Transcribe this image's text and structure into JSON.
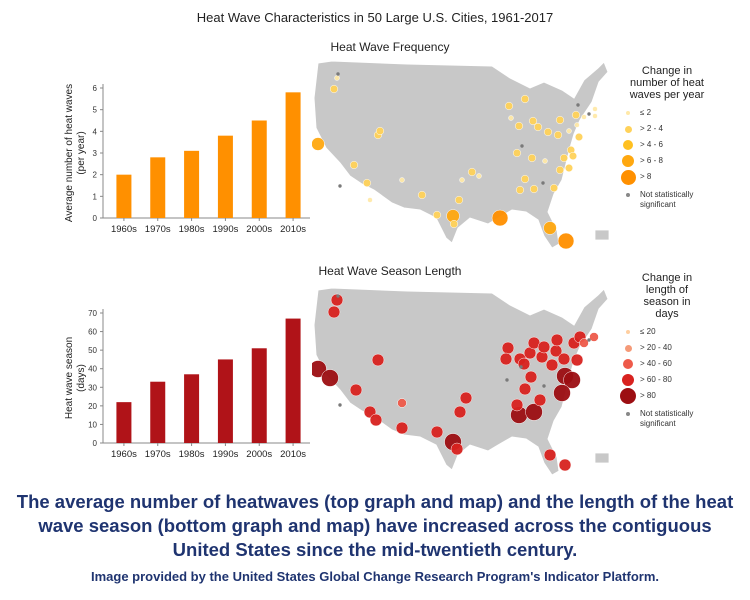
{
  "title": "Heat Wave Characteristics in 50 Large U.S. Cities, 1961-2017",
  "colors": {
    "frequency": "#ff9000",
    "season": "#b01318",
    "map_land": "#c8c8c8"
  },
  "chart_data": [
    {
      "type": "bar",
      "title": "Heat Wave Frequency",
      "categories": [
        "1960s",
        "1970s",
        "1980s",
        "1990s",
        "2000s",
        "2010s"
      ],
      "values": [
        2.0,
        2.8,
        3.1,
        3.8,
        4.5,
        5.8
      ],
      "ylabel": "Average number of heat waves (per year)",
      "ylim": [
        0,
        6
      ],
      "yticks": [
        0,
        1,
        2,
        3,
        4,
        5,
        6
      ],
      "color": "#ff9000"
    },
    {
      "type": "bar",
      "title": "Heat Wave Season Length",
      "categories": [
        "1960s",
        "1970s",
        "1980s",
        "1990s",
        "2000s",
        "2010s"
      ],
      "values": [
        22,
        33,
        37,
        45,
        51,
        67
      ],
      "ylabel": "Heat wave season (days)",
      "ylim": [
        0,
        70
      ],
      "yticks": [
        0,
        10,
        20,
        30,
        40,
        50,
        60,
        70
      ],
      "color": "#b01318"
    }
  ],
  "maps": {
    "frequency": {
      "legend_title": "Change in number of heat waves per year",
      "legend_items": [
        "≤ 2",
        "> 2 - 4",
        "> 4 - 6",
        "> 6 - 8",
        "> 8",
        "Not statistically significant"
      ],
      "legend_colors": [
        "#ffe9a8",
        "#ffd25a",
        "#ffc020",
        "#ffa810",
        "#ff9000",
        "#888888"
      ]
    },
    "season": {
      "legend_title": "Change in length of season in days",
      "legend_items": [
        "≤ 20",
        "> 20 - 40",
        "> 40 - 60",
        "> 60 - 80",
        "> 80",
        "Not statistically significant"
      ],
      "legend_colors": [
        "#ffcfa0",
        "#f59a78",
        "#ee5a4a",
        "#d8221f",
        "#9c0e12",
        "#888888"
      ]
    }
  },
  "caption": "The average number of heatwaves (top graph and map) and the length of the heat wave season (bottom graph and map) have increased across the contiguous United States since the mid-twentieth century.",
  "credit": "Image provided by the United States Global Change Research Program's Indicator Platform."
}
